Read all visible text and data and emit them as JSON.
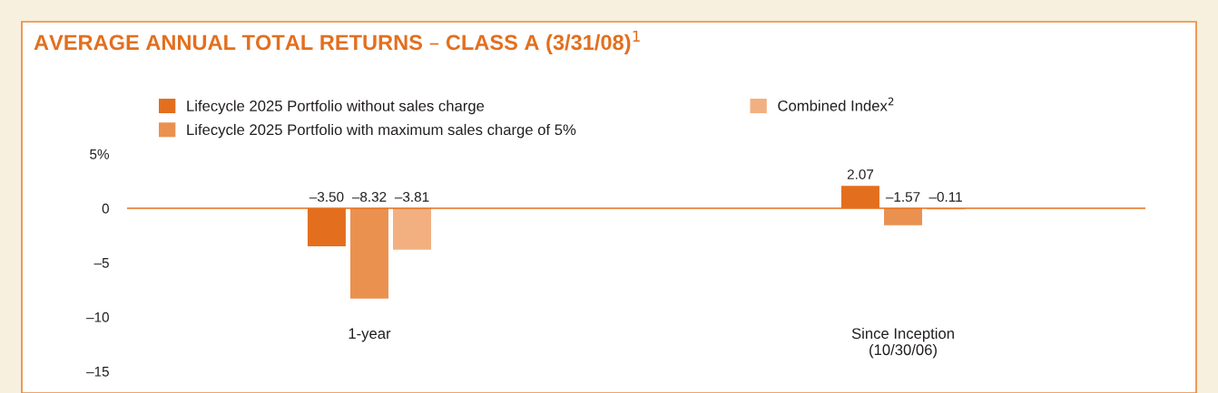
{
  "chart_data": {
    "type": "bar",
    "title": "AVERAGE ANNUAL TOTAL RETURNS – CLASS A (3/31/08)$^{1}$",
    "categories": [
      "1-year",
      "Since Inception\n(10/30/06)"
    ],
    "series": [
      {
        "name": "Lifecycle 2025 Portfolio without sales charge",
        "color": "#e36f1e",
        "values": [
          -3.5,
          2.07
        ],
        "value_labels": [
          "–3.50",
          "2.07"
        ]
      },
      {
        "name": "Lifecycle 2025 Portfolio with maximum sales charge of 5%",
        "color": "#ea9150",
        "values": [
          -8.32,
          -1.57
        ],
        "value_labels": [
          "–8.32",
          "–1.57"
        ]
      },
      {
        "name": "Combined Index$^{2}$",
        "color": "#f2b080",
        "values": [
          -3.81,
          -0.11
        ],
        "value_labels": [
          "–3.81",
          "–0.11"
        ]
      }
    ],
    "ylim": [
      -15,
      5
    ],
    "yticks": [
      {
        "value": 5,
        "label": "5%"
      },
      0,
      {
        "value": -5,
        "label": "–5"
      },
      {
        "value": -10,
        "label": "–10"
      },
      {
        "value": -15,
        "label": "–15"
      }
    ],
    "ref_lines": [
      {
        "axis": "y",
        "value": 0,
        "color": "#e36f1e"
      }
    ],
    "grid": false,
    "legend": "top"
  }
}
